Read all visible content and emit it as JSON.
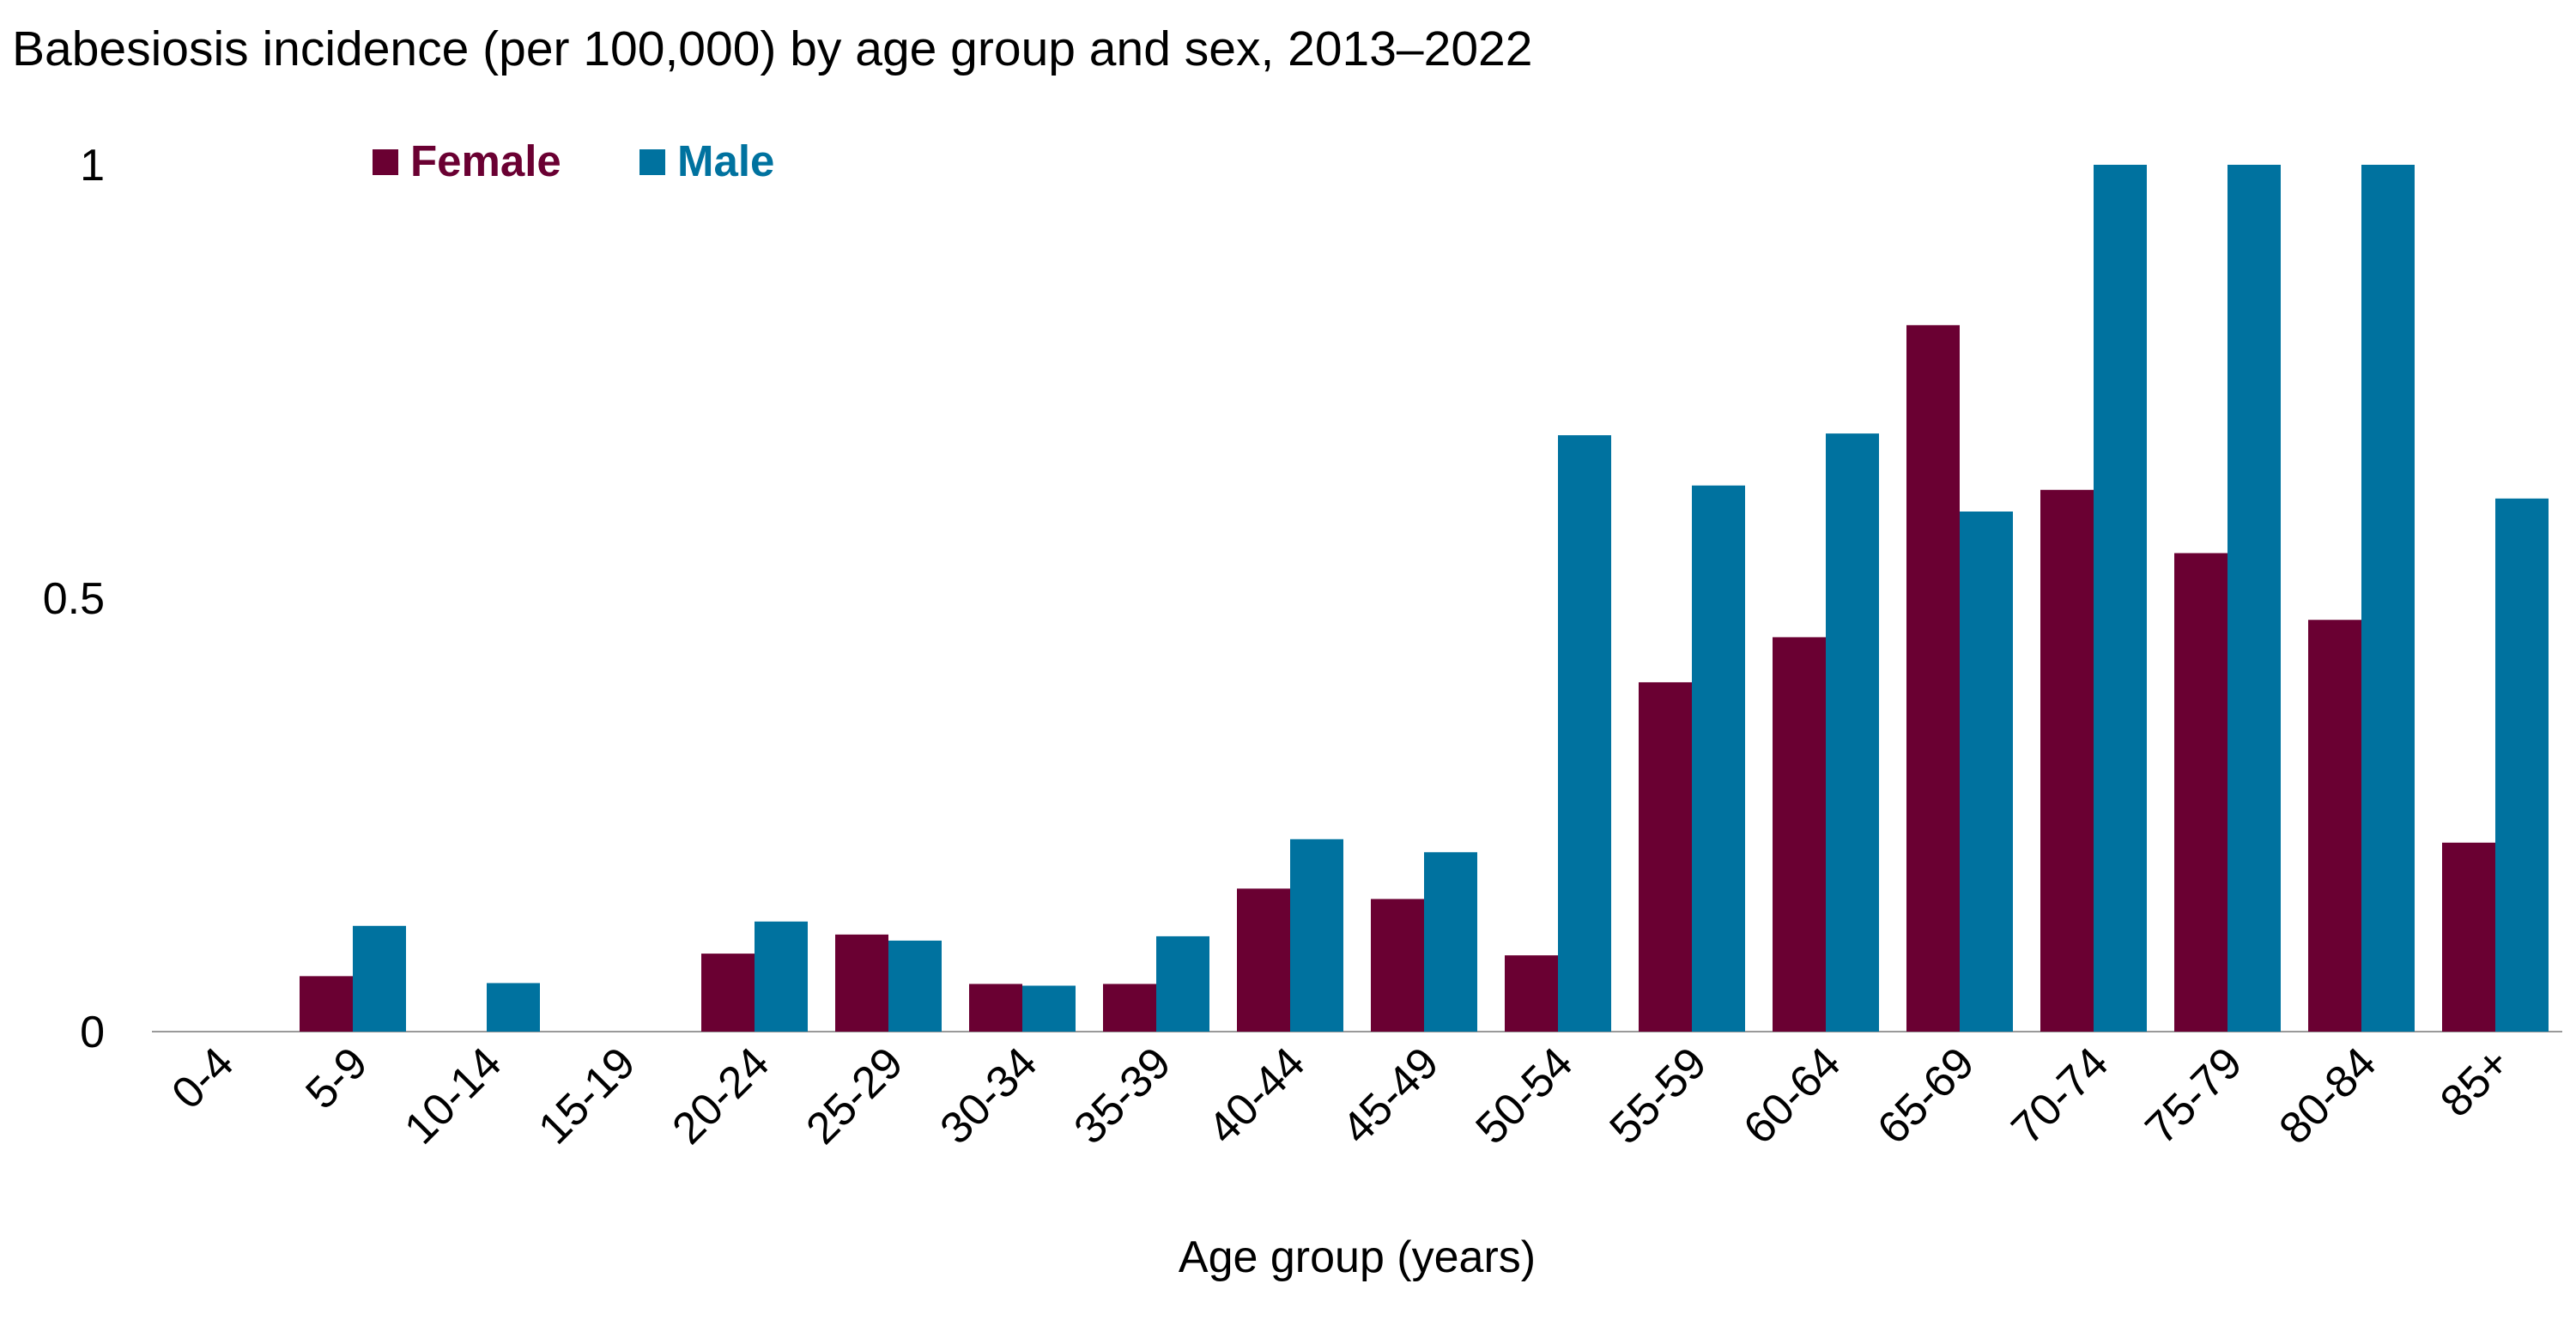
{
  "chart_data": {
    "type": "bar",
    "title": "Babesiosis incidence (per 100,000) by age group and sex, 2013–2022",
    "xlabel": "Age group (years)",
    "ylabel": "",
    "categories": [
      "0-4",
      "5-9",
      "10-14",
      "15-19",
      "20-24",
      "25-29",
      "30-34",
      "35-39",
      "40-44",
      "45-49",
      "50-54",
      "55-59",
      "60-64",
      "65-69",
      "70-74",
      "75-79",
      "80-84",
      "85+"
    ],
    "series": [
      {
        "name": "Female",
        "color": "#6a0032",
        "values": [
          0,
          0.064,
          0,
          0,
          0.09,
          0.112,
          0.055,
          0.055,
          0.165,
          0.153,
          0.088,
          0.403,
          0.455,
          0.815,
          0.625,
          0.552,
          0.475,
          0.218
        ]
      },
      {
        "name": "Male",
        "color": "#00729f",
        "values": [
          0,
          0.122,
          0.056,
          0,
          0.127,
          0.105,
          0.053,
          0.11,
          0.222,
          0.207,
          0.688,
          0.63,
          0.69,
          0.6,
          1.0,
          1.0,
          1.0,
          0.615
        ]
      }
    ],
    "ylim": [
      0,
      1
    ],
    "yticks": [
      "0",
      "0.5",
      "1"
    ],
    "ytick_values": [
      0,
      0.5,
      1
    ],
    "grid": false,
    "legend_position": "top-left"
  }
}
